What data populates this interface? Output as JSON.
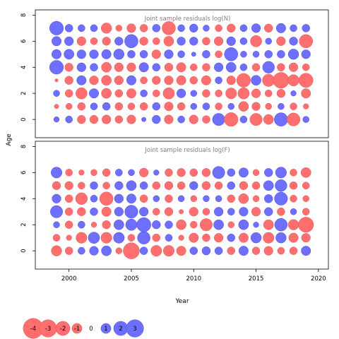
{
  "figure": {
    "y_axis_label": "Age",
    "x_axis_label": "Year"
  },
  "colors": {
    "negative_fill": "#ff6f6f",
    "negative_stroke": "#e05a5a",
    "positive_fill": "#6f6fff",
    "positive_stroke": "#4d4ddd",
    "zero_fill": "#ffa500",
    "title_text": "#808080",
    "axis": "#000000"
  },
  "chart_data": [
    {
      "type": "scatter",
      "subtype": "bubble",
      "title": "Joint sample residuals log(N)",
      "xlabel": "",
      "ylabel": "Age",
      "xlim": [
        1997.3,
        2020.8
      ],
      "ylim": [
        -1.4,
        8.4
      ],
      "xticks": [],
      "yticks": [
        0,
        2,
        4,
        6,
        8
      ],
      "grid": false,
      "x": [
        1999,
        2000,
        2001,
        2002,
        2003,
        2004,
        2005,
        2006,
        2007,
        2008,
        2009,
        2010,
        2011,
        2012,
        2013,
        2014,
        2015,
        2016,
        2017,
        2018,
        2019
      ],
      "ages": [
        0,
        1,
        2,
        3,
        4,
        5,
        6,
        7
      ],
      "residuals": [
        [
          0.3,
          0.5,
          -0.7,
          -0.7,
          -0.8,
          -0.6,
          -0.8,
          0.2,
          0.7,
          -0.8,
          0.5,
          -0.8,
          -0.6,
          1.5,
          -1.9,
          0.5,
          -1.5,
          -1.0,
          1.8,
          -1.7,
          0.4
        ],
        [
          -0.2,
          -0.4,
          -0.6,
          0.5,
          0.6,
          -0.6,
          -0.5,
          -0.6,
          0.6,
          -0.8,
          -0.6,
          0.4,
          0.5,
          -0.5,
          0.4,
          -1.0,
          -0.7,
          -0.4,
          0.4,
          -0.5,
          -0.3
        ],
        [
          0.4,
          -0.6,
          -1.3,
          0.9,
          -1.0,
          -0.6,
          -0.9,
          0.5,
          -0.5,
          -1.3,
          0.8,
          0.4,
          -0.6,
          -0.5,
          -1.2,
          -1.3,
          -0.8,
          -0.5,
          -0.7,
          0.3,
          -0.9
        ],
        [
          -0.1,
          -0.7,
          0.9,
          -0.8,
          -1.0,
          -0.8,
          0.9,
          -0.5,
          -0.7,
          -0.8,
          -0.9,
          -0.6,
          -0.9,
          0.5,
          -0.8,
          -1.9,
          1.0,
          -1.5,
          -2.5,
          -1.3,
          -2.0
        ],
        [
          1.9,
          -0.7,
          0.8,
          0.6,
          -1.0,
          -0.8,
          -0.8,
          0.9,
          0.6,
          -0.7,
          -0.9,
          -0.5,
          -0.6,
          0.8,
          1.0,
          0.5,
          -0.6,
          1.4,
          -0.6,
          -0.8,
          -0.5
        ],
        [
          0.9,
          1.0,
          0.8,
          0.8,
          0.9,
          1.1,
          0.6,
          0.6,
          -0.8,
          0.8,
          0.5,
          0.2,
          0.6,
          -0.5,
          1.8,
          0.4,
          0.4,
          0.6,
          0.6,
          1.1,
          0.8
        ],
        [
          0.9,
          0.8,
          -0.8,
          -0.5,
          -0.7,
          0.7,
          1.8,
          -0.7,
          -0.5,
          -1.0,
          0.7,
          0.7,
          -0.6,
          -0.8,
          0.8,
          0.5,
          -1.3,
          0.4,
          -0.8,
          0.7,
          -1.8
        ],
        [
          1.9,
          0.6,
          0.5,
          0.5,
          -1.1,
          -0.4,
          -0.8,
          -0.6,
          0.6,
          -1.8,
          0.5,
          0.7,
          0.4,
          -0.5,
          -0.7,
          0.5,
          0.8,
          -0.7,
          0.9,
          0.5,
          0.6
        ]
      ]
    },
    {
      "type": "scatter",
      "subtype": "bubble",
      "title": "Joint sample residuals log(F)",
      "xlabel": "Year",
      "ylabel": "Age",
      "xlim": [
        1997.3,
        2020.8
      ],
      "ylim": [
        -1.4,
        8.4
      ],
      "xticks": [
        2000,
        2005,
        2010,
        2015,
        2020
      ],
      "yticks": [
        0,
        2,
        4,
        6,
        8
      ],
      "grid": false,
      "x": [
        1999,
        2000,
        2001,
        2002,
        2003,
        2004,
        2005,
        2006,
        2007,
        2008,
        2009,
        2010,
        2011,
        2012,
        2013,
        2014,
        2015,
        2016,
        2017,
        2018,
        2019
      ],
      "ages": [
        0,
        1,
        2,
        3,
        4,
        5,
        6
      ],
      "residuals": [
        [
          -1.1,
          -0.6,
          0.5,
          0.8,
          1.0,
          -0.4,
          -2.6,
          0.6,
          -1.2,
          -1.2,
          -0.9,
          0.6,
          0.7,
          0.6,
          -0.6,
          0.9,
          -0.6,
          -0.8,
          -0.5,
          -0.6,
          0.9
        ],
        [
          -0.5,
          -0.3,
          -1.2,
          1.3,
          -1.2,
          1.2,
          -0.5,
          1.6,
          -0.6,
          0.5,
          -0.3,
          -0.9,
          -0.6,
          -0.8,
          0.6,
          -0.9,
          1.1,
          -1.2,
          1.1,
          -0.9,
          -0.8
        ],
        [
          0.4,
          -0.6,
          0.5,
          -0.3,
          -0.7,
          1.0,
          1.3,
          2.0,
          0.7,
          0.6,
          -1.0,
          -0.5,
          -1.5,
          1.0,
          -0.4,
          1.0,
          0.3,
          -1.0,
          1.6,
          -1.1,
          -2.3
        ],
        [
          1.5,
          -0.6,
          -0.7,
          0.6,
          -0.9,
          0.8,
          1.7,
          0.8,
          -0.5,
          -0.7,
          -0.2,
          -0.8,
          -0.5,
          0.8,
          0.5,
          0.8,
          -0.8,
          0.7,
          -0.6,
          0.4,
          -0.5
        ],
        [
          0.8,
          -0.6,
          -1.4,
          0.5,
          -1.8,
          0.8,
          0.9,
          -0.6,
          0.4,
          -0.6,
          0.4,
          -0.4,
          0.4,
          0.4,
          -0.6,
          -1.0,
          -0.4,
          0.7,
          1.7,
          -0.5,
          -0.4
        ],
        [
          -0.7,
          -0.7,
          -0.5,
          0.6,
          -0.5,
          0.7,
          1.0,
          0.6,
          -0.6,
          -0.7,
          -0.6,
          0.7,
          -0.7,
          -0.6,
          0.6,
          -0.7,
          -0.6,
          1.0,
          1.4,
          -0.6,
          -0.5
        ],
        [
          1.2,
          -0.5,
          -0.3,
          -0.4,
          -0.6,
          0.5,
          0.4,
          -0.8,
          0.3,
          -0.6,
          -0.7,
          -0.6,
          -0.7,
          1.5,
          0.6,
          0.9,
          -0.4,
          0.7,
          1.2,
          -0.5,
          -1.0
        ]
      ]
    }
  ],
  "legend": {
    "entries": [
      {
        "label": "-4",
        "value": -4
      },
      {
        "label": "-3",
        "value": -3
      },
      {
        "label": "-2",
        "value": -2
      },
      {
        "label": "-1",
        "value": -1
      },
      {
        "label": "0",
        "value": 0
      },
      {
        "label": "1",
        "value": 1
      },
      {
        "label": "2",
        "value": 2
      },
      {
        "label": "3",
        "value": 3
      }
    ]
  }
}
